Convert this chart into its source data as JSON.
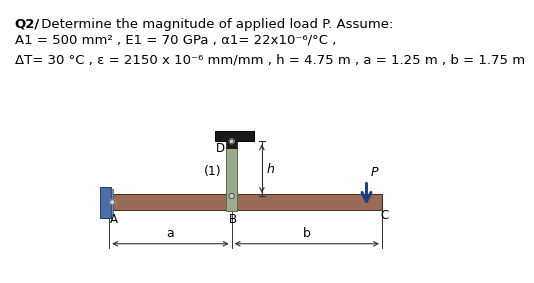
{
  "title_bold": "Q2/",
  "title_text": " Determine the magnitude of applied load P. Assume:",
  "line1": "A1 = 500 mm² , E1 = 70 GPa , α1= 22x10⁻⁶/°C ,",
  "line2": "ΔT= 30 °C , ε = 2150 x 10⁻⁶ mm/mm , h = 4.75 m , a = 1.25 m , b = 1.75 m",
  "bg_color": "#ffffff",
  "beam_color": "#9B6B5A",
  "column_color": "#9EAA8E",
  "wall_color": "#4A6FA5",
  "top_fix_color": "#1a1a1a",
  "arrow_color": "#1F3F7F",
  "dim_color": "#333333",
  "text_color": "#000000"
}
